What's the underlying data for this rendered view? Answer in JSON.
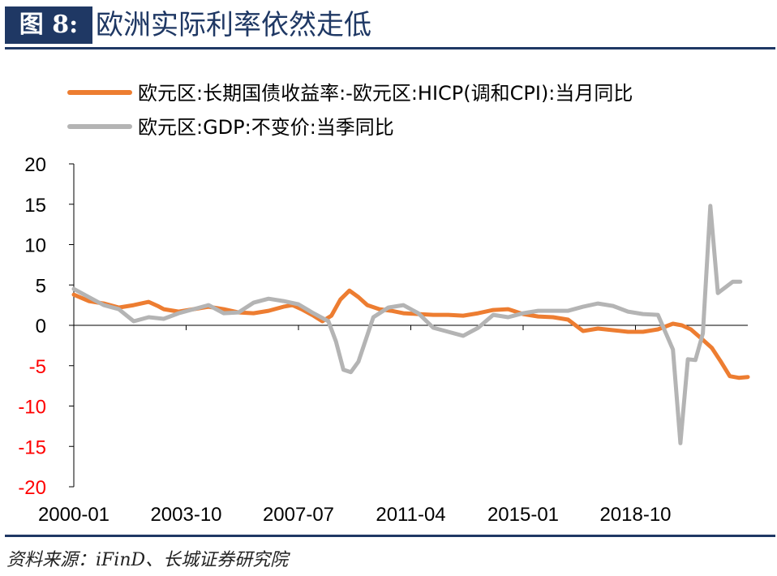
{
  "figure": {
    "label": "图 8:",
    "title": "欧洲实际利率依然走低",
    "source": "资料来源：iFinD、长城证券研究院"
  },
  "colors": {
    "header_bg": "#1f3864",
    "header_text": "#ffffff",
    "title_text": "#1f3864",
    "series_rate": "#ed7d31",
    "series_gdp": "#b4b4b4",
    "negative_tick": "#ff0000",
    "axis": "#000000"
  },
  "chart_data": {
    "type": "line",
    "title": "",
    "xlabel": "",
    "ylabel": "",
    "ylim": [
      -20,
      20
    ],
    "yticks": [
      20,
      15,
      10,
      5,
      0,
      -5,
      -10,
      -15,
      -20
    ],
    "ytick_labels": [
      "20",
      "15",
      "10",
      "5",
      "0",
      "-5",
      "-10",
      "-15",
      "-20"
    ],
    "xtick_labels": [
      "2000-01",
      "2003-10",
      "2007-07",
      "2011-04",
      "2015-01",
      "2018-10"
    ],
    "xtick_values": [
      2000.0,
      2003.75,
      2007.5,
      2011.25,
      2015.0,
      2018.75
    ],
    "xlim": [
      2000.0,
      2022.5
    ],
    "grid": false,
    "legend_position": "top",
    "series": [
      {
        "name": "欧元区:长期国债收益率:-欧元区:HICP(调和CPI):当月同比",
        "color": "#ed7d31",
        "x": [
          2000.0,
          2000.5,
          2001.0,
          2001.5,
          2002.0,
          2002.5,
          2002.8,
          2003.0,
          2003.5,
          2004.0,
          2004.5,
          2005.0,
          2005.5,
          2006.0,
          2006.5,
          2007.0,
          2007.3,
          2007.6,
          2008.0,
          2008.3,
          2008.6,
          2008.9,
          2009.2,
          2009.5,
          2009.8,
          2010.2,
          2010.6,
          2011.0,
          2011.5,
          2012.0,
          2012.5,
          2013.0,
          2013.5,
          2014.0,
          2014.5,
          2015.0,
          2015.5,
          2016.0,
          2016.5,
          2017.0,
          2017.5,
          2018.0,
          2018.5,
          2019.0,
          2019.5,
          2020.0,
          2020.3,
          2020.6,
          2021.0,
          2021.3,
          2021.6,
          2021.9,
          2022.2,
          2022.5
        ],
        "y": [
          3.8,
          3.0,
          2.7,
          2.2,
          2.5,
          2.9,
          2.4,
          2.0,
          1.7,
          2.0,
          2.3,
          2.0,
          1.6,
          1.5,
          1.8,
          2.3,
          2.5,
          2.0,
          1.2,
          0.5,
          1.2,
          3.2,
          4.3,
          3.5,
          2.5,
          2.0,
          1.8,
          1.5,
          1.4,
          1.3,
          1.3,
          1.2,
          1.5,
          1.9,
          2.0,
          1.4,
          1.1,
          1.0,
          0.7,
          -0.7,
          -0.4,
          -0.6,
          -0.8,
          -0.8,
          -0.5,
          0.2,
          0.0,
          -0.5,
          -1.8,
          -2.8,
          -4.5,
          -6.3,
          -6.5,
          -6.4
        ]
      },
      {
        "name": "欧元区:GDP:不变价:当季同比",
        "color": "#b4b4b4",
        "x": [
          2000.0,
          2000.5,
          2001.0,
          2001.5,
          2002.0,
          2002.5,
          2003.0,
          2003.5,
          2004.0,
          2004.5,
          2005.0,
          2005.5,
          2006.0,
          2006.5,
          2007.0,
          2007.5,
          2008.0,
          2008.5,
          2008.75,
          2009.0,
          2009.25,
          2009.5,
          2010.0,
          2010.5,
          2011.0,
          2011.5,
          2012.0,
          2012.5,
          2013.0,
          2013.5,
          2014.0,
          2014.5,
          2015.0,
          2015.5,
          2016.0,
          2016.5,
          2017.0,
          2017.5,
          2018.0,
          2018.5,
          2019.0,
          2019.5,
          2020.0,
          2020.25,
          2020.5,
          2020.75,
          2021.0,
          2021.25,
          2021.5,
          2021.75,
          2022.0,
          2022.25
        ],
        "y": [
          4.5,
          3.5,
          2.5,
          2.0,
          0.5,
          1.0,
          0.8,
          1.5,
          2.0,
          2.5,
          1.5,
          1.6,
          2.8,
          3.3,
          3.0,
          2.6,
          1.5,
          0.5,
          -2.0,
          -5.5,
          -5.8,
          -4.5,
          1.0,
          2.2,
          2.5,
          1.5,
          -0.3,
          -0.8,
          -1.3,
          -0.3,
          1.3,
          1.0,
          1.5,
          1.8,
          1.8,
          1.8,
          2.3,
          2.7,
          2.4,
          1.7,
          1.4,
          1.3,
          -3.0,
          -14.6,
          -4.2,
          -4.3,
          -1.0,
          14.8,
          4.0,
          4.7,
          5.4,
          5.4
        ]
      }
    ]
  }
}
